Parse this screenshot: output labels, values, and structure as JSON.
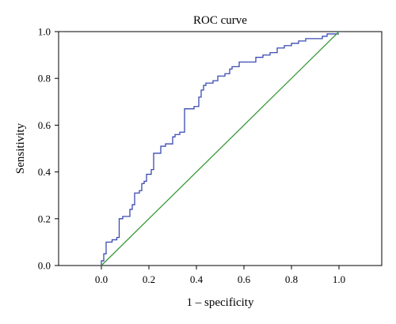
{
  "chart_data": {
    "type": "line",
    "title": "ROC curve",
    "xlabel": "1 – specificity",
    "ylabel": "Sensitivity",
    "xlim": [
      -0.18,
      1.18
    ],
    "ylim": [
      0.0,
      1.0
    ],
    "xticks": [
      "0.0",
      "0.2",
      "0.4",
      "0.6",
      "0.8",
      "1.0"
    ],
    "yticks": [
      "0.0",
      "0.2",
      "0.4",
      "0.6",
      "0.8",
      "1.0"
    ],
    "grid": false,
    "series": [
      {
        "color": "#3a4bb0",
        "step": true,
        "x": [
          0.0,
          0.0,
          0.01,
          0.01,
          0.02,
          0.02,
          0.045,
          0.045,
          0.065,
          0.065,
          0.075,
          0.075,
          0.09,
          0.09,
          0.12,
          0.12,
          0.13,
          0.13,
          0.14,
          0.14,
          0.16,
          0.16,
          0.17,
          0.17,
          0.18,
          0.18,
          0.19,
          0.19,
          0.21,
          0.21,
          0.22,
          0.22,
          0.25,
          0.25,
          0.27,
          0.27,
          0.3,
          0.3,
          0.31,
          0.31,
          0.33,
          0.33,
          0.35,
          0.35,
          0.39,
          0.39,
          0.41,
          0.41,
          0.42,
          0.42,
          0.43,
          0.43,
          0.44,
          0.44,
          0.47,
          0.47,
          0.49,
          0.49,
          0.52,
          0.52,
          0.54,
          0.54,
          0.55,
          0.55,
          0.58,
          0.58,
          0.65,
          0.65,
          0.68,
          0.68,
          0.71,
          0.71,
          0.74,
          0.74,
          0.77,
          0.77,
          0.8,
          0.8,
          0.83,
          0.83,
          0.86,
          0.86,
          0.93,
          0.93,
          0.95,
          0.95,
          1.0
        ],
        "y": [
          0.0,
          0.02,
          0.02,
          0.05,
          0.05,
          0.1,
          0.1,
          0.11,
          0.11,
          0.12,
          0.12,
          0.2,
          0.2,
          0.21,
          0.21,
          0.24,
          0.24,
          0.26,
          0.26,
          0.31,
          0.31,
          0.32,
          0.32,
          0.35,
          0.35,
          0.36,
          0.36,
          0.39,
          0.39,
          0.41,
          0.41,
          0.48,
          0.48,
          0.51,
          0.51,
          0.52,
          0.52,
          0.55,
          0.55,
          0.56,
          0.56,
          0.57,
          0.57,
          0.67,
          0.67,
          0.68,
          0.68,
          0.72,
          0.72,
          0.75,
          0.75,
          0.77,
          0.77,
          0.78,
          0.78,
          0.79,
          0.79,
          0.81,
          0.81,
          0.82,
          0.82,
          0.84,
          0.84,
          0.85,
          0.85,
          0.87,
          0.87,
          0.89,
          0.89,
          0.9,
          0.9,
          0.91,
          0.91,
          0.93,
          0.93,
          0.94,
          0.94,
          0.95,
          0.95,
          0.96,
          0.96,
          0.97,
          0.97,
          0.98,
          0.98,
          0.99,
          0.99
        ]
      },
      {
        "color": "#3a9a3a",
        "step": false,
        "x": [
          0.0,
          1.0
        ],
        "y": [
          0.0,
          1.0
        ]
      }
    ]
  }
}
